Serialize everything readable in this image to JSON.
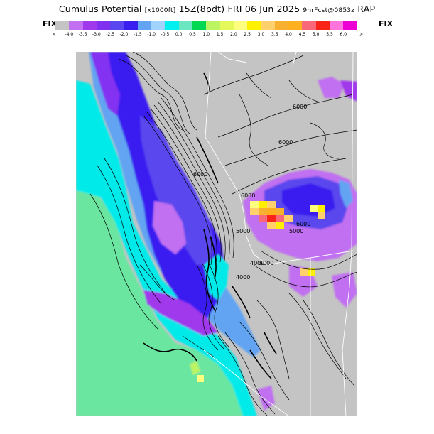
{
  "header": {
    "product": "Cumulus Potential",
    "units": "[x1000ft]",
    "valid": "15Z(8pdt) FRI 06 Jun 2025",
    "forecast": "9hrFcst@0853z",
    "model": "RAP"
  },
  "legend": {
    "left_label": "FIX",
    "right_label": "FIX",
    "less_symbol": "<",
    "greater_symbol": ">",
    "ticks": [
      "-4.0",
      "-3.5",
      "-3.0",
      "-2.5",
      "-2.0",
      "-1.5",
      "-1.0",
      "-0.5",
      "0.0",
      "0.5",
      "1.0",
      "1.5",
      "2.0",
      "2.5",
      "3.0",
      "3.5",
      "4.0",
      "4.5",
      "5.0",
      "5.5",
      "6.0"
    ],
    "colors": [
      "#c4c4c4",
      "#c070f0",
      "#a038ec",
      "#8230f0",
      "#5a46ee",
      "#3a1ef0",
      "#62a4f2",
      "#a0d4ff",
      "#00f0f0",
      "#6ae6c0",
      "#00d854",
      "#bcf462",
      "#e4f85a",
      "#ffff7e",
      "#fff000",
      "#ffd06c",
      "#f8b030",
      "#ffb020",
      "#f86878",
      "#f82418",
      "#fc74dc",
      "#ec00d4"
    ]
  },
  "map": {
    "contour_labels": [
      "6000",
      "6000",
      "6000",
      "6000",
      "6000",
      "5000",
      "5000",
      "5000",
      "4000",
      "4000"
    ]
  }
}
